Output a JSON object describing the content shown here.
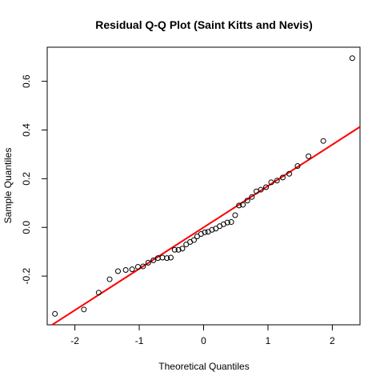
{
  "chart_data": {
    "type": "scatter",
    "title": "Residual Q-Q Plot (Saint Kitts and Nevis)",
    "xlabel": "Theoretical Quantiles",
    "ylabel": "Sample Quantiles",
    "xlim": [
      -2.43,
      2.43
    ],
    "ylim": [
      -0.4,
      0.74
    ],
    "x_ticks": [
      -2,
      -1,
      0,
      1,
      2
    ],
    "x_tick_labels": [
      "-2",
      "-1",
      "0",
      "1",
      "2"
    ],
    "y_ticks": [
      -0.2,
      0.0,
      0.2,
      0.4,
      0.6
    ],
    "y_tick_labels": [
      "-0.2",
      "0.0",
      "0.2",
      "0.4",
      "0.6"
    ],
    "grid": false,
    "point_color": "#000000",
    "line_color": "#ff0000",
    "points": [
      {
        "x": -2.31,
        "y": -0.355
      },
      {
        "x": -1.86,
        "y": -0.337
      },
      {
        "x": -1.63,
        "y": -0.268
      },
      {
        "x": -1.46,
        "y": -0.213
      },
      {
        "x": -1.33,
        "y": -0.18
      },
      {
        "x": -1.21,
        "y": -0.175
      },
      {
        "x": -1.11,
        "y": -0.172
      },
      {
        "x": -1.02,
        "y": -0.162
      },
      {
        "x": -0.94,
        "y": -0.16
      },
      {
        "x": -0.86,
        "y": -0.145
      },
      {
        "x": -0.78,
        "y": -0.135
      },
      {
        "x": -0.71,
        "y": -0.126
      },
      {
        "x": -0.64,
        "y": -0.124
      },
      {
        "x": -0.57,
        "y": -0.126
      },
      {
        "x": -0.51,
        "y": -0.124
      },
      {
        "x": -0.45,
        "y": -0.092
      },
      {
        "x": -0.39,
        "y": -0.092
      },
      {
        "x": -0.33,
        "y": -0.087
      },
      {
        "x": -0.27,
        "y": -0.07
      },
      {
        "x": -0.21,
        "y": -0.06
      },
      {
        "x": -0.15,
        "y": -0.052
      },
      {
        "x": -0.1,
        "y": -0.037
      },
      {
        "x": -0.04,
        "y": -0.027
      },
      {
        "x": 0.02,
        "y": -0.02
      },
      {
        "x": 0.07,
        "y": -0.018
      },
      {
        "x": 0.13,
        "y": -0.01
      },
      {
        "x": 0.19,
        "y": -0.005
      },
      {
        "x": 0.25,
        "y": 0.005
      },
      {
        "x": 0.31,
        "y": 0.013
      },
      {
        "x": 0.37,
        "y": 0.02
      },
      {
        "x": 0.43,
        "y": 0.022
      },
      {
        "x": 0.49,
        "y": 0.05
      },
      {
        "x": 0.55,
        "y": 0.09
      },
      {
        "x": 0.61,
        "y": 0.093
      },
      {
        "x": 0.68,
        "y": 0.11
      },
      {
        "x": 0.75,
        "y": 0.125
      },
      {
        "x": 0.82,
        "y": 0.148
      },
      {
        "x": 0.89,
        "y": 0.155
      },
      {
        "x": 0.97,
        "y": 0.165
      },
      {
        "x": 1.05,
        "y": 0.185
      },
      {
        "x": 1.14,
        "y": 0.192
      },
      {
        "x": 1.23,
        "y": 0.205
      },
      {
        "x": 1.33,
        "y": 0.22
      },
      {
        "x": 1.46,
        "y": 0.252
      },
      {
        "x": 1.63,
        "y": 0.292
      },
      {
        "x": 1.86,
        "y": 0.355
      },
      {
        "x": 2.31,
        "y": 0.695
      }
    ],
    "reference_line": {
      "intercept": 0.0,
      "slope": 0.17
    }
  }
}
